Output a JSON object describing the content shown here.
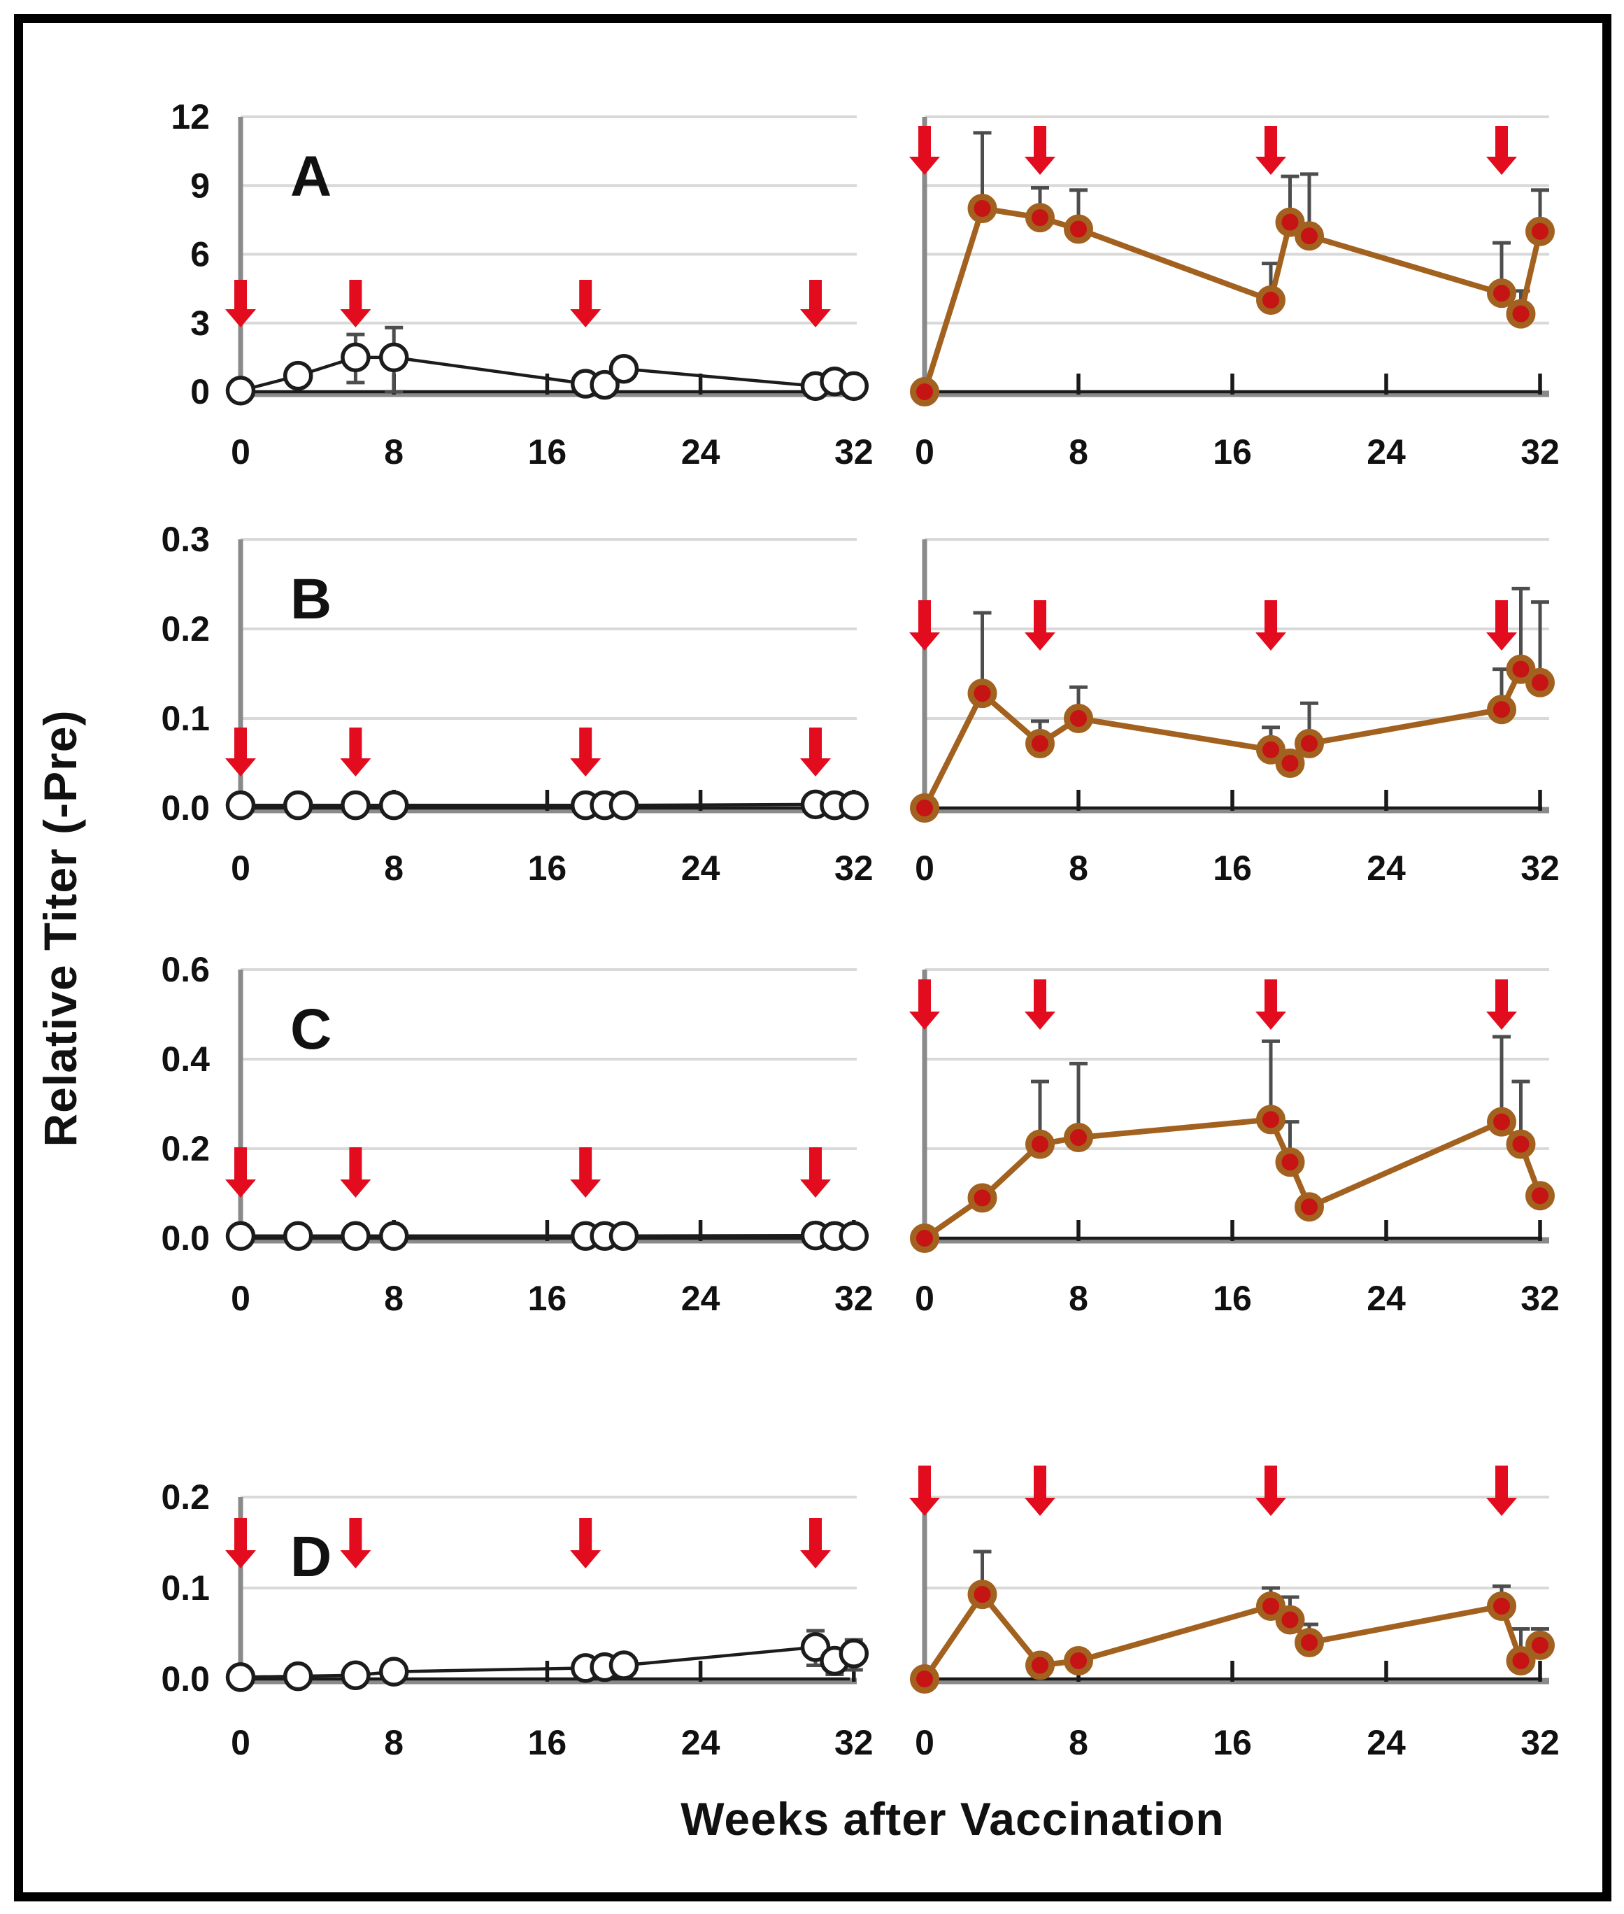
{
  "figure": {
    "y_axis_label": "Relative Titer (-Pre)",
    "x_axis_label": "Weeks after Vaccination"
  },
  "panel_letters": [
    "A",
    "B",
    "C",
    "D"
  ],
  "colors": {
    "control_line": "#1c1c1c",
    "control_marker_fill": "#ffffff",
    "control_marker_stroke": "#1c1c1c",
    "vaccinated_line": "#a2611f",
    "vaccinated_marker_fill": "#c61313",
    "vaccinated_marker_stroke": "#a2611f",
    "error_bar": "#4d4d4d",
    "gridline": "#d9d9d9",
    "axis_gray": "#8a8a8a",
    "axis_black": "#1a1a1a",
    "arrow_red": "#e30b1e",
    "tick_text": "#111111"
  },
  "chart_data": [
    {
      "type": "line",
      "panel": "A",
      "column": "left",
      "series": "control",
      "x": [
        0,
        3,
        6,
        8,
        18,
        19,
        20,
        30,
        31,
        32
      ],
      "y": [
        0.05,
        0.7,
        1.5,
        1.5,
        0.35,
        0.3,
        1.0,
        0.25,
        0.45,
        0.25
      ],
      "err_up": [
        0,
        0,
        1.0,
        1.3,
        0,
        0,
        0,
        0,
        0,
        0
      ],
      "err_down": [
        0,
        0,
        1.1,
        1.5,
        0,
        0,
        0,
        0,
        0,
        0
      ],
      "ylim": [
        0,
        12
      ],
      "ytick_values": [
        12,
        9,
        6,
        3,
        0
      ],
      "ytick_labels": [
        "12",
        "9",
        "6",
        "3",
        "0"
      ],
      "xtick_values": [
        0,
        8,
        16,
        24,
        32
      ],
      "xtick_labels": [
        "0",
        "8",
        "16",
        "24",
        "32"
      ],
      "arrow_weeks": [
        0,
        6,
        18,
        30
      ],
      "marker": "open"
    },
    {
      "type": "line",
      "panel": "A",
      "column": "right",
      "series": "vaccinated",
      "x": [
        0,
        3,
        6,
        8,
        18,
        19,
        20,
        30,
        31,
        32
      ],
      "y": [
        0,
        8.0,
        7.6,
        7.1,
        4.0,
        7.4,
        6.8,
        4.3,
        3.4,
        7.0
      ],
      "err_up": [
        0,
        3.3,
        1.3,
        1.7,
        1.6,
        2.0,
        2.7,
        2.2,
        1.0,
        1.8
      ],
      "err_down": [
        0,
        0,
        0,
        0,
        0,
        0,
        0,
        0,
        0,
        0
      ],
      "ylim": [
        0,
        12
      ],
      "ytick_values": [],
      "ytick_labels": [],
      "xtick_values": [
        0,
        8,
        16,
        24,
        32
      ],
      "xtick_labels": [
        "0",
        "8",
        "16",
        "24",
        "32"
      ],
      "arrow_weeks": [
        0,
        6,
        18,
        30
      ],
      "marker": "filled"
    },
    {
      "type": "line",
      "panel": "B",
      "column": "left",
      "series": "control",
      "x": [
        0,
        3,
        6,
        8,
        18,
        19,
        20,
        30,
        31,
        32
      ],
      "y": [
        0.003,
        0.003,
        0.003,
        0.003,
        0.003,
        0.003,
        0.003,
        0.004,
        0.003,
        0.003
      ],
      "err_up": [
        0,
        0,
        0,
        0,
        0,
        0,
        0,
        0,
        0,
        0
      ],
      "err_down": [
        0,
        0,
        0,
        0,
        0,
        0,
        0,
        0,
        0,
        0
      ],
      "ylim": [
        0,
        0.3
      ],
      "ytick_values": [
        0.3,
        0.2,
        0.1,
        0.0
      ],
      "ytick_labels": [
        "0.3",
        "0.2",
        "0.1",
        "0.0"
      ],
      "xtick_values": [
        0,
        8,
        16,
        24,
        32
      ],
      "xtick_labels": [
        "0",
        "8",
        "16",
        "24",
        "32"
      ],
      "arrow_weeks": [
        0,
        6,
        18,
        30
      ],
      "marker": "open"
    },
    {
      "type": "line",
      "panel": "B",
      "column": "right",
      "series": "vaccinated",
      "x": [
        0,
        3,
        6,
        8,
        18,
        19,
        20,
        30,
        31,
        32
      ],
      "y": [
        0,
        0.128,
        0.072,
        0.1,
        0.065,
        0.05,
        0.072,
        0.11,
        0.155,
        0.14
      ],
      "err_up": [
        0,
        0.09,
        0.025,
        0.035,
        0.025,
        0,
        0.045,
        0.045,
        0.09,
        0.09
      ],
      "err_down": [
        0,
        0,
        0,
        0,
        0,
        0,
        0,
        0,
        0,
        0
      ],
      "ylim": [
        0,
        0.3
      ],
      "ytick_values": [],
      "ytick_labels": [],
      "xtick_values": [
        0,
        8,
        16,
        24,
        32
      ],
      "xtick_labels": [
        "0",
        "8",
        "16",
        "24",
        "32"
      ],
      "arrow_weeks": [
        0,
        6,
        18,
        30
      ],
      "marker": "filled"
    },
    {
      "type": "line",
      "panel": "C",
      "column": "left",
      "series": "control",
      "x": [
        0,
        3,
        6,
        8,
        18,
        19,
        20,
        30,
        31,
        32
      ],
      "y": [
        0.005,
        0.005,
        0.005,
        0.005,
        0.005,
        0.005,
        0.005,
        0.006,
        0.005,
        0.005
      ],
      "err_up": [
        0,
        0,
        0,
        0,
        0,
        0,
        0,
        0,
        0,
        0
      ],
      "err_down": [
        0,
        0,
        0,
        0,
        0,
        0,
        0,
        0,
        0,
        0
      ],
      "ylim": [
        0,
        0.6
      ],
      "ytick_values": [
        0.6,
        0.4,
        0.2,
        0.0
      ],
      "ytick_labels": [
        "0.6",
        "0.4",
        "0.2",
        "0.0"
      ],
      "xtick_values": [
        0,
        8,
        16,
        24,
        32
      ],
      "xtick_labels": [
        "0",
        "8",
        "16",
        "24",
        "32"
      ],
      "arrow_weeks": [
        0,
        6,
        18,
        30
      ],
      "marker": "open"
    },
    {
      "type": "line",
      "panel": "C",
      "column": "right",
      "series": "vaccinated",
      "x": [
        0,
        3,
        6,
        8,
        18,
        19,
        20,
        30,
        31,
        32
      ],
      "y": [
        0,
        0.09,
        0.21,
        0.225,
        0.265,
        0.17,
        0.07,
        0.26,
        0.21,
        0.095
      ],
      "err_up": [
        0,
        0,
        0.14,
        0.165,
        0.175,
        0.09,
        0,
        0.19,
        0.14,
        0
      ],
      "err_down": [
        0,
        0,
        0,
        0,
        0,
        0,
        0,
        0,
        0,
        0
      ],
      "ylim": [
        0,
        0.6
      ],
      "ytick_values": [],
      "ytick_labels": [],
      "xtick_values": [
        0,
        8,
        16,
        24,
        32
      ],
      "xtick_labels": [
        "0",
        "8",
        "16",
        "24",
        "32"
      ],
      "arrow_weeks": [
        0,
        6,
        18,
        30
      ],
      "marker": "filled"
    },
    {
      "type": "line",
      "panel": "D",
      "column": "left",
      "series": "control",
      "x": [
        0,
        3,
        6,
        8,
        18,
        19,
        20,
        30,
        31,
        32
      ],
      "y": [
        0.002,
        0.003,
        0.004,
        0.008,
        0.012,
        0.013,
        0.015,
        0.035,
        0.02,
        0.028
      ],
      "err_up": [
        0,
        0,
        0,
        0,
        0,
        0,
        0,
        0.018,
        0.012,
        0.015
      ],
      "err_down": [
        0,
        0,
        0,
        0,
        0,
        0,
        0,
        0.02,
        0.015,
        0.018
      ],
      "ylim": [
        0,
        0.2
      ],
      "ytick_values": [
        0.2,
        0.1,
        0.0
      ],
      "ytick_labels": [
        "0.2",
        "0.1",
        "0.0"
      ],
      "xtick_values": [
        0,
        8,
        16,
        24,
        32
      ],
      "xtick_labels": [
        "0",
        "8",
        "16",
        "24",
        "32"
      ],
      "arrow_weeks": [
        0,
        6,
        18,
        30
      ],
      "marker": "open"
    },
    {
      "type": "line",
      "panel": "D",
      "column": "right",
      "series": "vaccinated",
      "x": [
        0,
        3,
        6,
        8,
        18,
        19,
        20,
        30,
        31,
        32
      ],
      "y": [
        0,
        0.093,
        0.015,
        0.02,
        0.08,
        0.065,
        0.04,
        0.08,
        0.02,
        0.037
      ],
      "err_up": [
        0,
        0.047,
        0,
        0,
        0.02,
        0.025,
        0.02,
        0.022,
        0.035,
        0.018
      ],
      "err_down": [
        0,
        0,
        0,
        0,
        0,
        0,
        0,
        0,
        0,
        0
      ],
      "ylim": [
        0,
        0.2
      ],
      "ytick_values": [],
      "ytick_labels": [],
      "xtick_values": [
        0,
        8,
        16,
        24,
        32
      ],
      "xtick_labels": [
        "0",
        "8",
        "16",
        "24",
        "32"
      ],
      "arrow_weeks": [
        0,
        6,
        18,
        30
      ],
      "marker": "filled"
    }
  ]
}
